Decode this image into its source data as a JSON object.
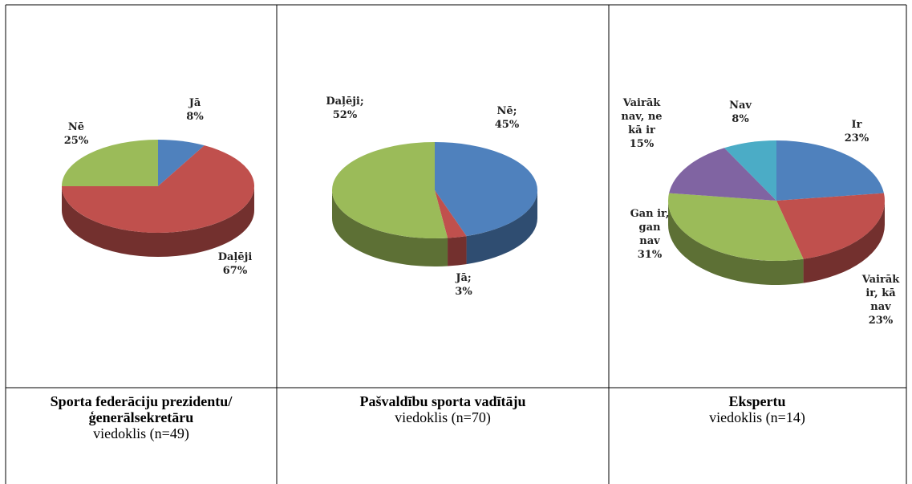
{
  "chart_data": [
    {
      "type": "pie",
      "categories": [
        "Jā",
        "Daļēji",
        "Nē"
      ],
      "values": [
        8,
        67,
        25
      ],
      "value_labels": [
        "8%",
        "67%",
        "25%"
      ],
      "colors": [
        "#4f81bd",
        "#c0504d",
        "#9bbb59"
      ],
      "caption_title": "Sporta federāciju prezidentu/ ģenerālsekretāru",
      "caption_text": "viedoklis  (n=49)"
    },
    {
      "type": "pie",
      "categories": [
        "Nē;",
        "Jā;",
        "Daļēji;"
      ],
      "values": [
        45,
        3,
        52
      ],
      "value_labels": [
        "45%",
        "3%",
        "52%"
      ],
      "colors": [
        "#4f81bd",
        "#c0504d",
        "#9bbb59"
      ],
      "caption_title": "Pašvaldību sporta vadītāju",
      "caption_text": "viedoklis (n=70)"
    },
    {
      "type": "pie",
      "categories": [
        "Ir",
        "Vairāk ir, kā nav",
        "Gan ir, gan nav",
        "Vairāk nav, ne kā ir",
        "Nav"
      ],
      "values": [
        23,
        23,
        31,
        15,
        8
      ],
      "value_labels": [
        "23%",
        "23%",
        "31%",
        "15%",
        "8%"
      ],
      "colors": [
        "#4f81bd",
        "#c0504d",
        "#9bbb59",
        "#8064a2",
        "#4bacc6"
      ],
      "caption_title": "Ekspertu",
      "caption_text": "viedoklis (n=14)"
    }
  ]
}
